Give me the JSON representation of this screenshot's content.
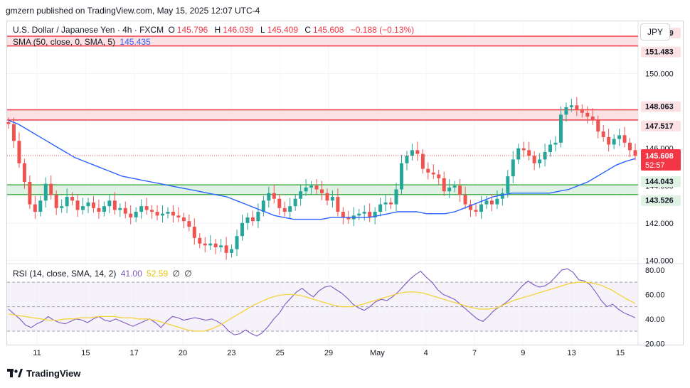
{
  "attribution": "gmzern published on TradingView.com, May 15, 2025 12:07 UTC-4",
  "currency_button": "JPY",
  "brand": "TradingView",
  "legend": {
    "symbol": "U.S. Dollar / Japanese Yen · 4h · FXCM",
    "open_label": "O",
    "open": "145.796",
    "high_label": "H",
    "high": "146.039",
    "low_label": "L",
    "low": "145.409",
    "close_label": "C",
    "close": "145.608",
    "change": "−0.188 (−0.13%)",
    "sma_label": "SMA (50, close, 0, SMA, 5)",
    "sma_value": "145.435",
    "rsi_label": "RSI (14, close, SMA, 14, 2)",
    "rsi_value": "41.00",
    "rsi_ma_value": "52.59",
    "rsi_extra1": "∅",
    "rsi_extra2": "∅"
  },
  "colors": {
    "up": "#26a69a",
    "down": "#ef5350",
    "sma": "#2962ff",
    "resistance_fill": "#fbe1e3",
    "resistance_line": "#f23645",
    "support_fill": "#dff2e4",
    "support_line": "#4caf50",
    "rsi": "#7e57c2",
    "rsi_ma": "#f5d33b",
    "rsi_band": "#ede7f6"
  },
  "chart_data": [
    {
      "type": "candlestick",
      "timeframe": "4h",
      "x_labels": [
        "11",
        "15",
        "17",
        "20",
        "23",
        "25",
        "29",
        "May",
        "4",
        "7",
        "9",
        "13",
        "15"
      ],
      "y_ticks": [
        "140.000",
        "142.000",
        "144.000",
        "146.000",
        "150.000"
      ],
      "ylim": [
        139.9,
        152.8
      ],
      "zones": [
        {
          "kind": "resistance",
          "top": 151.999,
          "bottom": 151.483,
          "top_label": "151.999",
          "bottom_label": "151.483"
        },
        {
          "kind": "resistance",
          "top": 148.063,
          "bottom": 147.517,
          "top_label": "148.063",
          "bottom_label": "147.517"
        },
        {
          "kind": "support",
          "top": 144.043,
          "bottom": 143.526,
          "top_label": "144.043",
          "bottom_label": "143.526"
        }
      ],
      "last_price": 145.608,
      "last_price_label": "145.608",
      "countdown": "52:57",
      "close_path": [
        147.3,
        146.4,
        145.2,
        144.2,
        143.0,
        142.6,
        143.2,
        144.1,
        143.5,
        142.8,
        142.9,
        143.4,
        143.2,
        142.7,
        142.9,
        143.1,
        142.8,
        142.6,
        142.9,
        143.2,
        142.7,
        142.8,
        142.5,
        142.3,
        142.6,
        142.9,
        142.7,
        142.6,
        142.4,
        142.5,
        142.6,
        142.4,
        142.3,
        142.1,
        141.8,
        141.2,
        140.9,
        140.8,
        140.9,
        140.7,
        140.8,
        140.4,
        140.6,
        141.3,
        142.0,
        142.3,
        142.1,
        142.6,
        143.2,
        143.6,
        143.3,
        142.8,
        142.6,
        142.9,
        143.3,
        143.7,
        143.9,
        144.0,
        143.8,
        143.6,
        143.2,
        143.4,
        142.6,
        142.3,
        142.2,
        142.4,
        142.5,
        142.6,
        142.3,
        142.6,
        143.0,
        143.1,
        143.0,
        143.8,
        145.2,
        145.6,
        145.9,
        145.7,
        144.9,
        144.7,
        144.6,
        144.4,
        143.7,
        143.9,
        144.0,
        143.5,
        143.0,
        142.7,
        142.6,
        143.0,
        143.2,
        143.0,
        143.3,
        143.6,
        144.5,
        145.4,
        146.0,
        145.9,
        145.6,
        145.2,
        145.4,
        145.8,
        146.2,
        146.3,
        147.8,
        148.2,
        148.3,
        148.1,
        147.9,
        147.7,
        147.5,
        146.9,
        146.6,
        146.2,
        146.5,
        146.7,
        146.3,
        145.9,
        145.6
      ],
      "sma_path": [
        147.5,
        147.3,
        147.0,
        146.7,
        146.4,
        146.1,
        145.8,
        145.5,
        145.3,
        145.1,
        144.9,
        144.7,
        144.5,
        144.4,
        144.3,
        144.2,
        144.1,
        144.0,
        143.9,
        143.8,
        143.7,
        143.6,
        143.5,
        143.4,
        143.2,
        143.0,
        142.8,
        142.6,
        142.4,
        142.3,
        142.2,
        142.2,
        142.2,
        142.2,
        142.3,
        142.3,
        142.3,
        142.3,
        142.3,
        142.4,
        142.5,
        142.6,
        142.6,
        142.6,
        142.5,
        142.5,
        142.5,
        142.6,
        142.8,
        143.0,
        143.2,
        143.4,
        143.5,
        143.6,
        143.6,
        143.6,
        143.6,
        143.6,
        143.7,
        143.8,
        144.0,
        144.2,
        144.5,
        144.8,
        145.1,
        145.3,
        145.45
      ],
      "series": [
        {
          "name": "USD/JPY"
        },
        {
          "name": "SMA (50, close, 0, SMA, 5)"
        }
      ]
    },
    {
      "type": "line",
      "y_ticks": [
        "20.00",
        "40.00",
        "60.00",
        "80.00"
      ],
      "ylim": [
        19,
        84
      ],
      "upper_band": 70,
      "mid_band": 50,
      "lower_band": 30,
      "rsi_path": [
        48,
        44,
        40,
        35,
        33,
        36,
        38,
        42,
        39,
        37,
        36,
        38,
        40,
        39,
        37,
        40,
        42,
        39,
        38,
        40,
        38,
        36,
        34,
        36,
        38,
        40,
        37,
        33,
        38,
        42,
        41,
        39,
        40,
        41,
        40,
        39,
        40,
        38,
        35,
        30,
        27,
        28,
        31,
        28,
        26,
        29,
        34,
        40,
        45,
        52,
        57,
        62,
        65,
        61,
        58,
        63,
        66,
        67,
        64,
        61,
        57,
        52,
        49,
        47,
        50,
        54,
        56,
        55,
        58,
        62,
        67,
        72,
        76,
        79,
        74,
        70,
        64,
        60,
        58,
        56,
        52,
        48,
        44,
        40,
        38,
        42,
        47,
        50,
        53,
        57,
        62,
        67,
        71,
        68,
        66,
        67,
        70,
        75,
        80,
        81,
        78,
        72,
        71,
        68,
        62,
        55,
        50,
        52,
        48,
        45,
        43,
        41
      ],
      "rsi_ma_path": [
        44,
        43,
        42,
        41,
        40,
        39,
        39,
        40,
        40,
        41,
        41,
        42,
        42,
        42,
        41,
        41,
        40,
        40,
        39,
        37,
        35,
        33,
        31,
        30,
        30,
        32,
        35,
        39,
        43,
        47,
        51,
        54,
        57,
        59,
        60,
        60,
        59,
        57,
        55,
        53,
        51,
        50,
        50,
        51,
        53,
        55,
        57,
        59,
        61,
        62,
        62,
        61,
        59,
        57,
        55,
        53,
        51,
        49,
        48,
        48,
        49,
        52,
        55,
        57,
        59,
        61,
        63,
        65,
        67,
        69,
        70,
        70,
        69,
        67,
        64,
        60,
        56,
        52.6
      ]
    }
  ]
}
